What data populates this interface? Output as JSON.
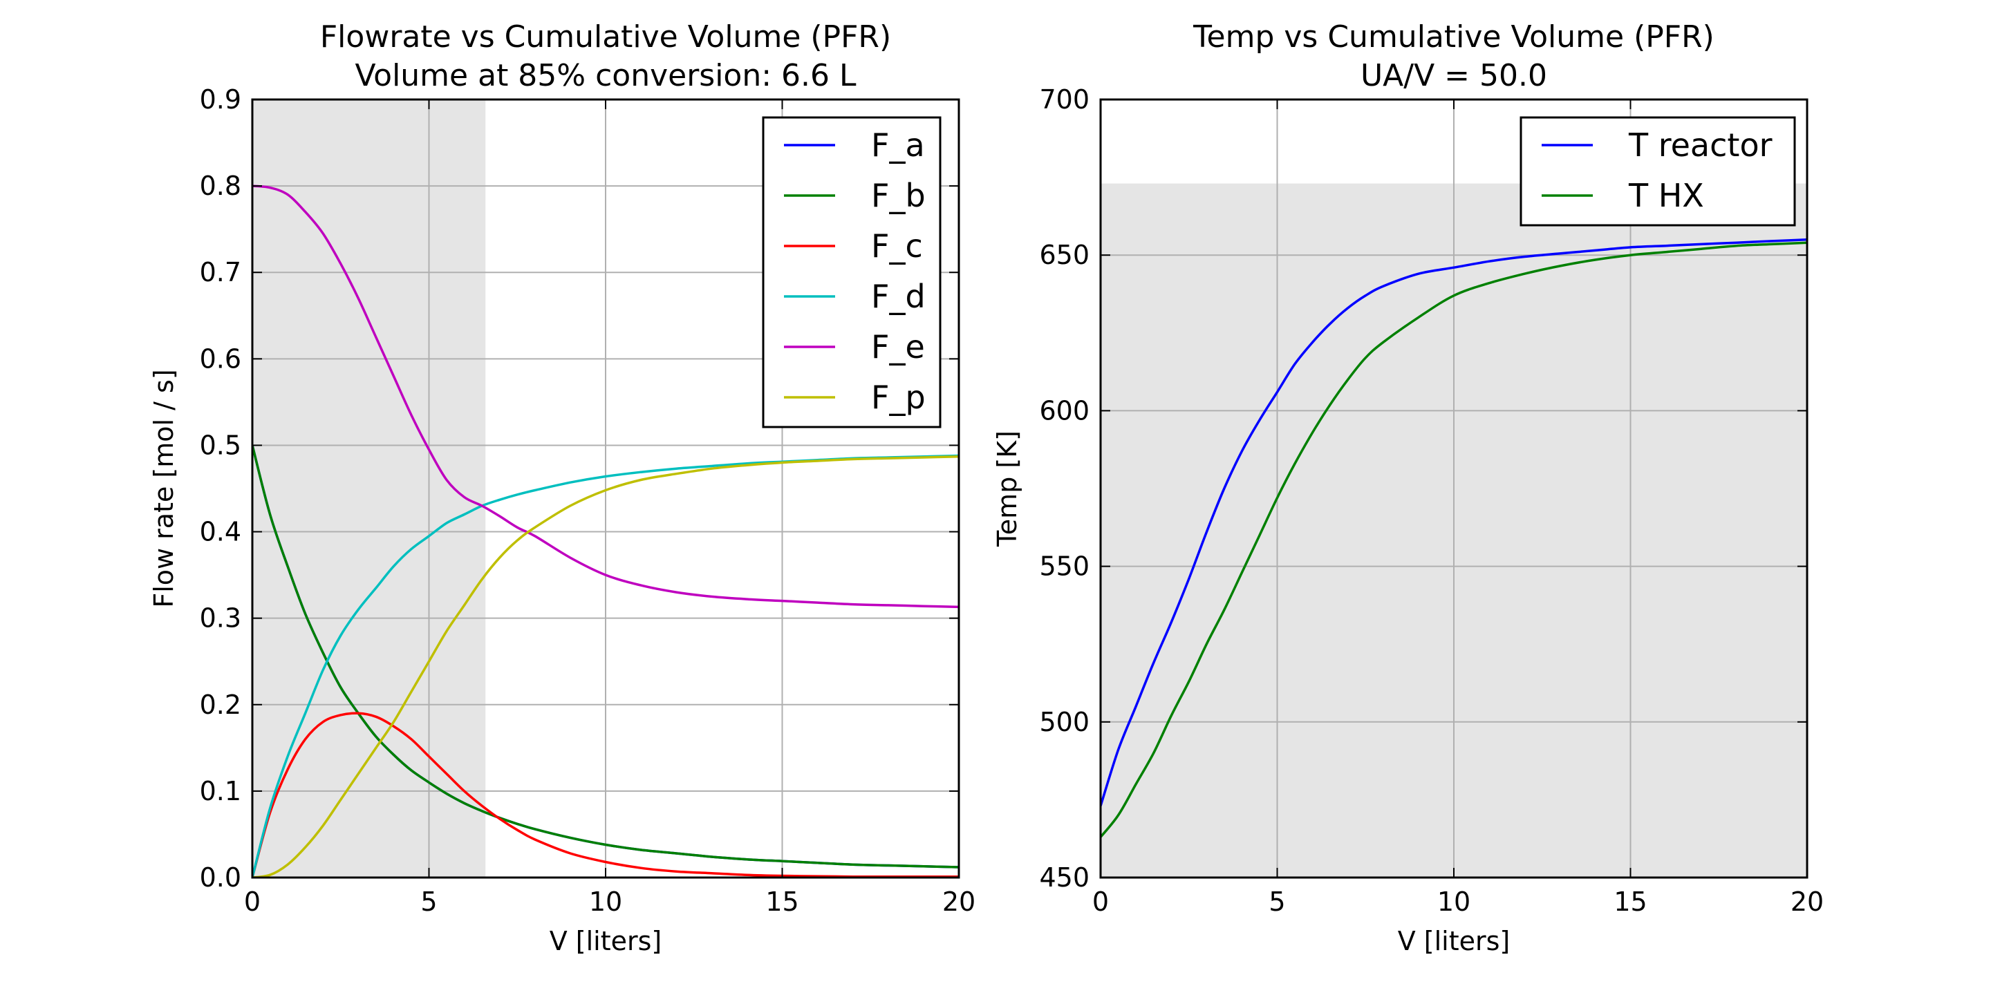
{
  "chart_data": [
    {
      "type": "line",
      "title": "Flowrate vs Cumulative Volume (PFR)",
      "subtitle": "Volume at 85% conversion:  6.6 L",
      "xlabel": "V [liters]",
      "ylabel": "Flow rate [mol / s]",
      "xlim": [
        0,
        20
      ],
      "ylim": [
        0,
        0.9
      ],
      "xticks": [
        0,
        5,
        10,
        15,
        20
      ],
      "yticks": [
        0.0,
        0.1,
        0.2,
        0.3,
        0.4,
        0.5,
        0.6,
        0.7,
        0.8,
        0.9
      ],
      "xtick_labels": [
        "0",
        "5",
        "10",
        "15",
        "20"
      ],
      "ytick_labels": [
        "0.0",
        "0.1",
        "0.2",
        "0.3",
        "0.4",
        "0.5",
        "0.6",
        "0.7",
        "0.8",
        "0.9"
      ],
      "grid": true,
      "legend": "top-right",
      "shaded_region": {
        "x": [
          0,
          6.6
        ],
        "color": "#e5e5e5"
      },
      "x": [
        0,
        0.5,
        1,
        1.5,
        2,
        2.5,
        3,
        3.5,
        4,
        4.5,
        5,
        5.5,
        6,
        6.5,
        7,
        7.5,
        8,
        9,
        10,
        11,
        12,
        13,
        14,
        15,
        16,
        17,
        18,
        19,
        20
      ],
      "series": [
        {
          "name": "F_a",
          "color": "#0000ff",
          "values": [
            0.5,
            0.42,
            0.36,
            0.305,
            0.26,
            0.22,
            0.19,
            0.163,
            0.142,
            0.124,
            0.11,
            0.097,
            0.086,
            0.077,
            0.069,
            0.062,
            0.056,
            0.046,
            0.038,
            0.032,
            0.028,
            0.024,
            0.021,
            0.019,
            0.017,
            0.015,
            0.014,
            0.013,
            0.012
          ]
        },
        {
          "name": "F_b",
          "color": "#008000",
          "values": [
            0.5,
            0.42,
            0.36,
            0.305,
            0.26,
            0.22,
            0.19,
            0.163,
            0.142,
            0.124,
            0.11,
            0.097,
            0.086,
            0.077,
            0.069,
            0.062,
            0.056,
            0.046,
            0.038,
            0.032,
            0.028,
            0.024,
            0.021,
            0.019,
            0.017,
            0.015,
            0.014,
            0.013,
            0.012
          ]
        },
        {
          "name": "F_c",
          "color": "#ff0000",
          "values": [
            0.0,
            0.075,
            0.125,
            0.16,
            0.18,
            0.188,
            0.19,
            0.186,
            0.175,
            0.16,
            0.14,
            0.12,
            0.1,
            0.083,
            0.068,
            0.055,
            0.044,
            0.028,
            0.018,
            0.011,
            0.007,
            0.005,
            0.003,
            0.002,
            0.0015,
            0.001,
            0.001,
            0.001,
            0.001
          ]
        },
        {
          "name": "F_d",
          "color": "#00bfbf",
          "values": [
            0.0,
            0.08,
            0.14,
            0.19,
            0.24,
            0.28,
            0.31,
            0.335,
            0.36,
            0.38,
            0.395,
            0.41,
            0.42,
            0.43,
            0.437,
            0.443,
            0.448,
            0.457,
            0.464,
            0.469,
            0.473,
            0.476,
            0.479,
            0.481,
            0.483,
            0.485,
            0.486,
            0.487,
            0.488
          ]
        },
        {
          "name": "F_e",
          "color": "#bf00bf",
          "values": [
            0.8,
            0.798,
            0.79,
            0.77,
            0.745,
            0.71,
            0.67,
            0.625,
            0.58,
            0.535,
            0.495,
            0.46,
            0.44,
            0.43,
            0.418,
            0.405,
            0.395,
            0.37,
            0.35,
            0.338,
            0.33,
            0.325,
            0.322,
            0.32,
            0.318,
            0.316,
            0.315,
            0.314,
            0.313
          ]
        },
        {
          "name": "F_p",
          "color": "#bfbf00",
          "values": [
            0.0,
            0.003,
            0.015,
            0.035,
            0.06,
            0.09,
            0.12,
            0.15,
            0.18,
            0.215,
            0.25,
            0.285,
            0.315,
            0.345,
            0.37,
            0.39,
            0.405,
            0.43,
            0.448,
            0.46,
            0.467,
            0.473,
            0.477,
            0.48,
            0.482,
            0.484,
            0.485,
            0.486,
            0.487
          ]
        }
      ]
    },
    {
      "type": "line",
      "title": "Temp vs Cumulative Volume (PFR)",
      "subtitle": "UA/V = 50.0",
      "xlabel": "V [liters]",
      "ylabel": "Temp [K]",
      "xlim": [
        0,
        20
      ],
      "ylim": [
        450,
        700
      ],
      "xticks": [
        0,
        5,
        10,
        15,
        20
      ],
      "yticks": [
        450,
        500,
        550,
        600,
        650,
        700
      ],
      "xtick_labels": [
        "0",
        "5",
        "10",
        "15",
        "20"
      ],
      "ytick_labels": [
        "450",
        "500",
        "550",
        "600",
        "650",
        "700"
      ],
      "grid": true,
      "legend": "top-right",
      "shaded_region": {
        "y": [
          450,
          673
        ],
        "color": "#e5e5e5"
      },
      "x": [
        0,
        0.5,
        1,
        1.5,
        2,
        2.5,
        3,
        3.5,
        4,
        4.5,
        5,
        5.5,
        6,
        6.5,
        7,
        7.5,
        8,
        9,
        10,
        11,
        12,
        13,
        14,
        15,
        16,
        17,
        18,
        19,
        20
      ],
      "series": [
        {
          "name": "T reactor",
          "color": "#0000ff",
          "values": [
            473,
            491,
            505,
            519,
            532,
            546,
            561,
            575,
            587,
            597,
            606,
            615,
            622,
            628,
            633,
            637,
            640,
            644,
            646,
            648,
            649.5,
            650.5,
            651.5,
            652.5,
            653,
            653.5,
            654,
            654.5,
            655
          ]
        },
        {
          "name": "T HX",
          "color": "#008000",
          "values": [
            463,
            470,
            480,
            490,
            502,
            513,
            525,
            536,
            548,
            560,
            572,
            583,
            593,
            602,
            610,
            617,
            622,
            630,
            637,
            641,
            644,
            646.5,
            648.5,
            650,
            651,
            652,
            653,
            653.5,
            654
          ]
        }
      ]
    }
  ]
}
